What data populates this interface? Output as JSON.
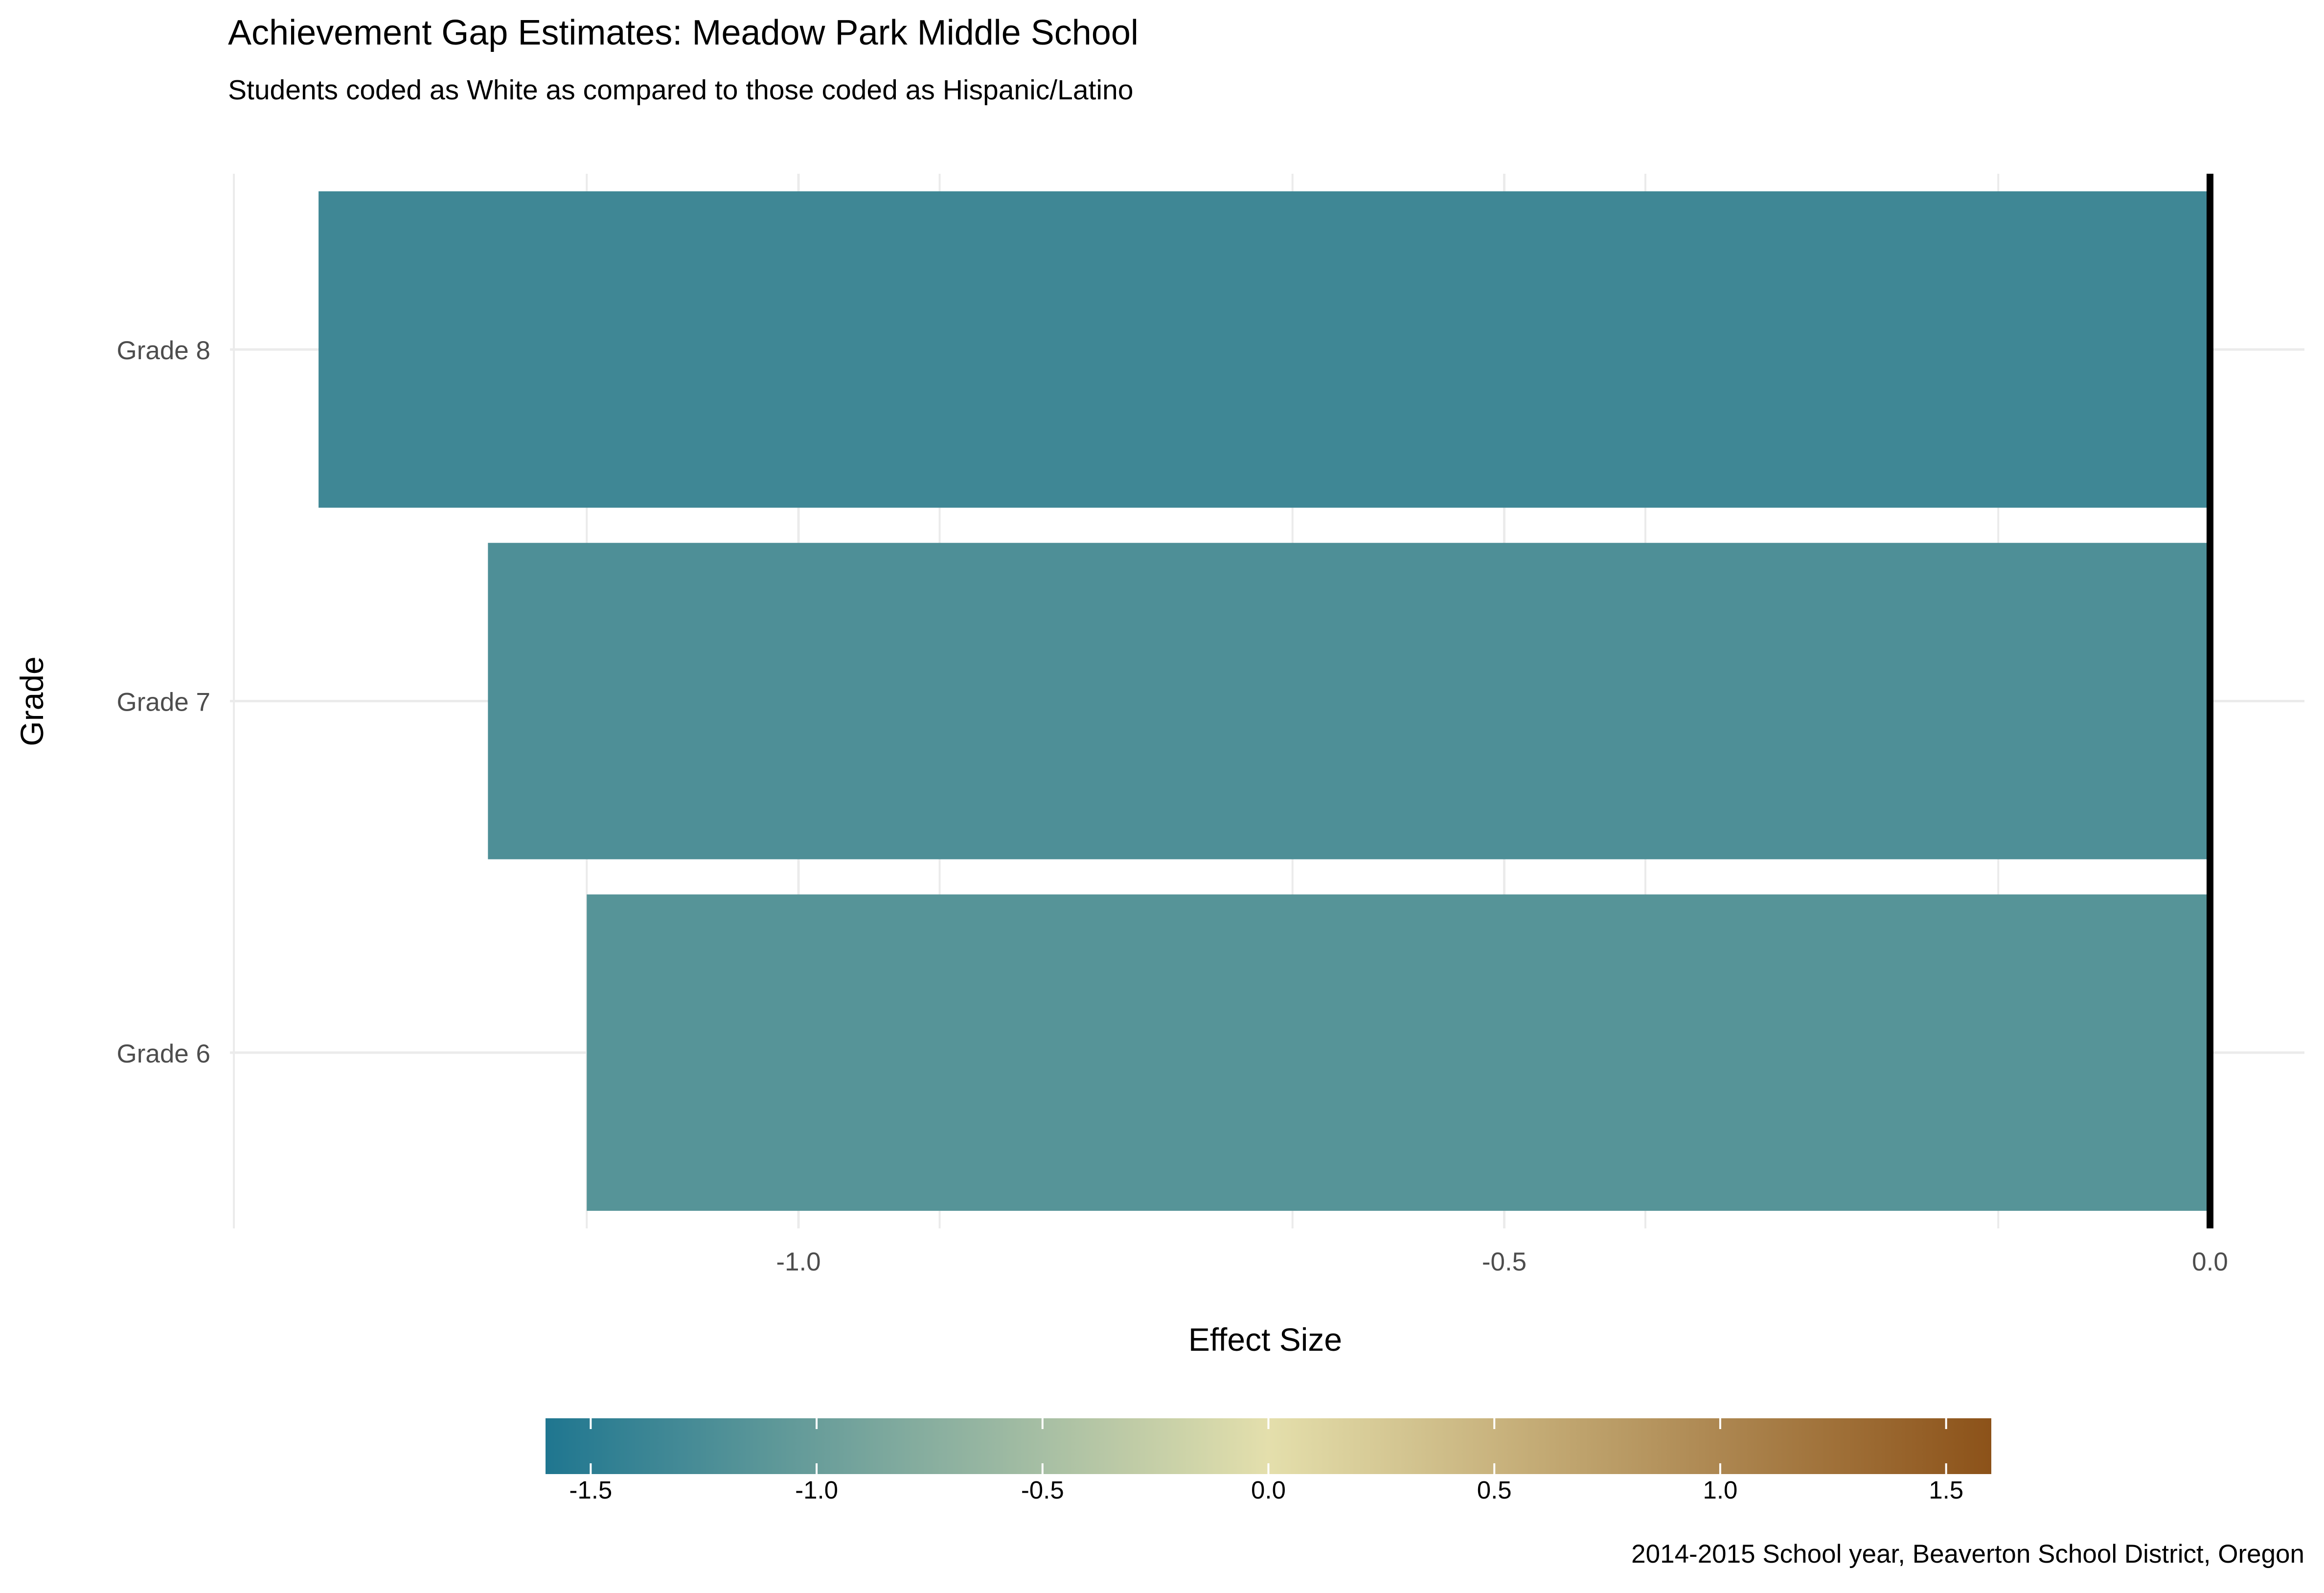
{
  "chart_data": {
    "type": "bar",
    "orientation": "horizontal",
    "title": "Achievement Gap Estimates: Meadow Park Middle School",
    "subtitle": "Students coded as White as compared to those coded as Hispanic/Latino",
    "xlabel": "Effect Size",
    "ylabel": "Grade",
    "caption": "2014-2015 School year, Beaverton School District, Oregon",
    "categories": [
      "Grade 8",
      "Grade 7",
      "Grade 6"
    ],
    "values": [
      -1.34,
      -1.22,
      -1.15
    ],
    "xlim": [
      -1.4,
      0.0
    ],
    "x_ticks": [
      -1.0,
      -0.5,
      0.0
    ],
    "x_tick_labels": [
      "-1.0",
      "-0.5",
      "0.0"
    ],
    "reference_line": 0.0,
    "grid": true,
    "legend": {
      "type": "colorbar",
      "position": "bottom",
      "range": [
        -1.6,
        1.6
      ],
      "ticks": [
        -1.5,
        -1.0,
        -0.5,
        0.0,
        0.5,
        1.0,
        1.5
      ],
      "tick_labels": [
        "-1.5",
        "-1.0",
        "-0.5",
        "0.0",
        "0.5",
        "1.0",
        "1.5"
      ],
      "colors": [
        "#1f7690",
        "#e4dfac",
        "#8c5219"
      ]
    },
    "colors": {
      "background": "#ffffff",
      "grid": "#ebebeb",
      "reference_line": "#000000",
      "text": "#000000",
      "tick_text": "#4d4d4d"
    }
  }
}
